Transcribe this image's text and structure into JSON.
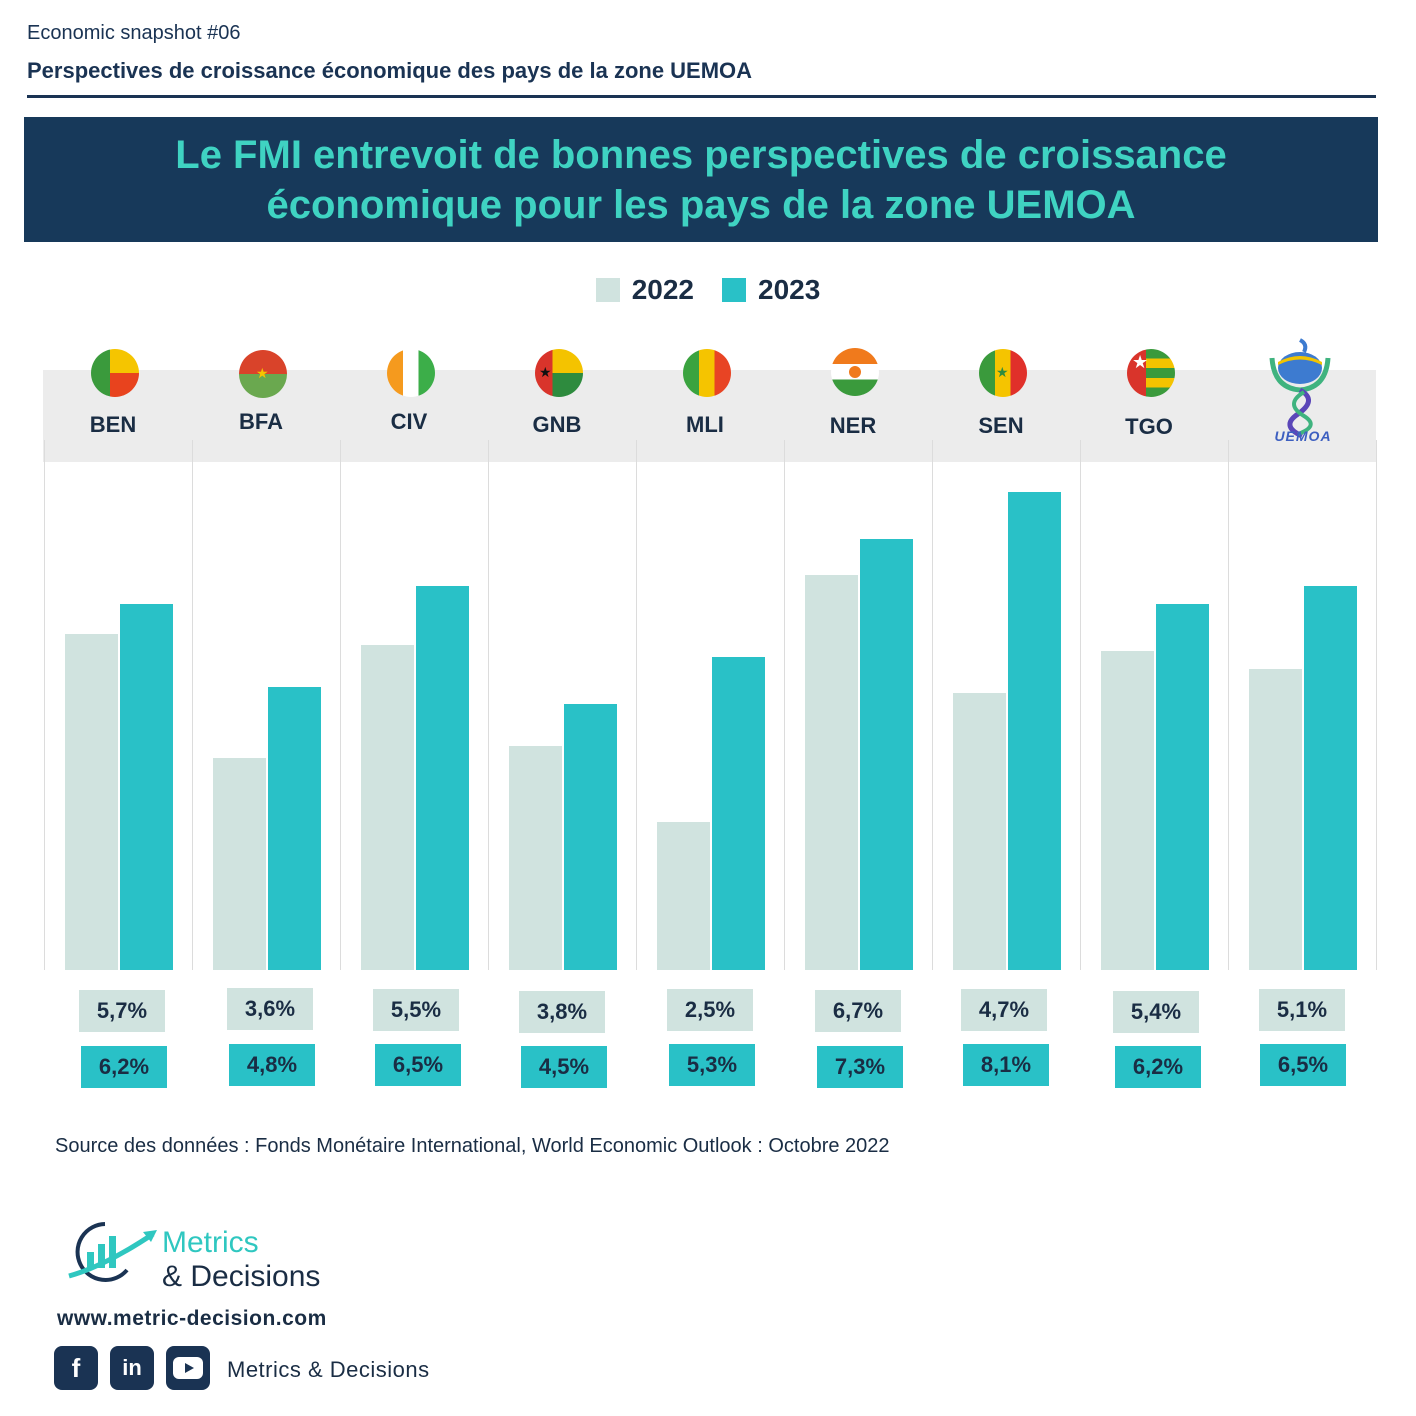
{
  "header": {
    "kicker": "Economic snapshot #06",
    "subtitle": "Perspectives de croissance économique des pays de la zone UEMOA"
  },
  "banner": {
    "line1": "Le FMI entrevoit de bonnes perspectives de croissance",
    "line2": "économique pour les pays de la zone UEMOA"
  },
  "colors": {
    "series_2022": "#d0e3df",
    "series_2023": "#29c1c7",
    "banner_bg": "#17395a",
    "banner_text": "#3fd3c2",
    "navy": "#1a3353"
  },
  "chart_data": {
    "type": "bar",
    "categories": [
      "BEN",
      "BFA",
      "CIV",
      "GNB",
      "MLI",
      "NER",
      "SEN",
      "TGO",
      "UEMOA"
    ],
    "series": [
      {
        "name": "2022",
        "values": [
          5.7,
          3.6,
          5.5,
          3.8,
          2.5,
          6.7,
          4.7,
          5.4,
          5.1
        ],
        "labels": [
          "5,7%",
          "3,6%",
          "5,5%",
          "3,8%",
          "2,5%",
          "6,7%",
          "4,7%",
          "5,4%",
          "5,1%"
        ]
      },
      {
        "name": "2023",
        "values": [
          6.2,
          4.8,
          6.5,
          4.5,
          5.3,
          7.3,
          8.1,
          6.2,
          6.5
        ],
        "labels": [
          "6,2%",
          "4,8%",
          "6,5%",
          "4,5%",
          "5,3%",
          "7,3%",
          "8,1%",
          "6,2%",
          "6,5%"
        ]
      }
    ],
    "ylim": [
      0,
      8.1
    ],
    "legend": "top-center",
    "grid": false
  },
  "icons": {
    "flags": [
      "flag-benin-icon",
      "flag-burkina-faso-icon",
      "flag-cote-divoire-icon",
      "flag-guinea-bissau-icon",
      "flag-mali-icon",
      "flag-niger-icon",
      "flag-senegal-icon",
      "flag-togo-icon"
    ],
    "uemoa_logo": "uemoa-logo",
    "uemoa_logo_text": "UEMOA"
  },
  "footer": {
    "source": "Source des données :  Fonds Monétaire International, World Economic Outlook : Octobre 2022",
    "brand_line1": "Metrics",
    "brand_line2": "& Decisions",
    "url": "www.metric-decision.com",
    "social_name": "Metrics & Decisions",
    "social_icons": [
      "facebook-icon",
      "linkedin-icon",
      "youtube-icon"
    ],
    "facebook_glyph": "f",
    "linkedin_glyph": "in"
  }
}
